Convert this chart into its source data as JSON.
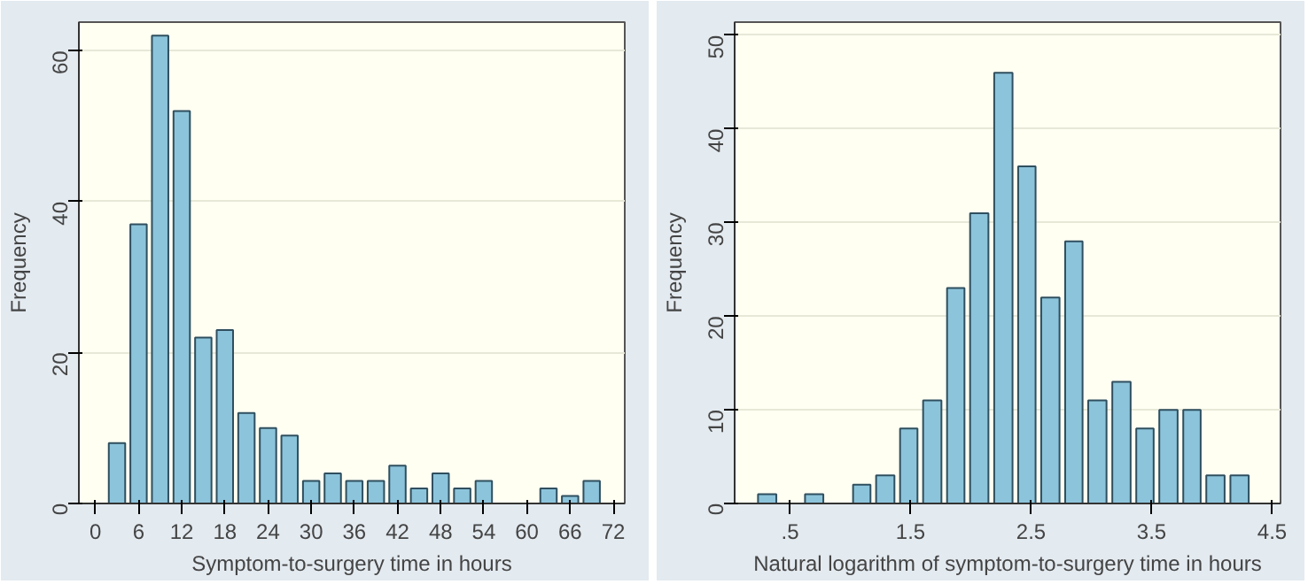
{
  "chart_data": [
    {
      "type": "histogram",
      "xlabel": "Symptom-to-surgery time in hours",
      "ylabel": "Frequency",
      "color": "#8cc4db",
      "bins": [
        1.5,
        4.5,
        7.5,
        10.5,
        13.5,
        16.5,
        19.5,
        22.5,
        25.5,
        28.5,
        31.5,
        34.5,
        37.5,
        40.5,
        43.5,
        46.5,
        49.5,
        52.5,
        55.5,
        58.5,
        61.5,
        64.5,
        67.5,
        70.5
      ],
      "values": [
        8,
        37,
        62,
        52,
        22,
        23,
        12,
        10,
        9,
        3,
        4,
        3,
        3,
        5,
        2,
        4,
        2,
        3,
        0,
        0,
        2,
        1,
        3
      ],
      "xlim": [
        -2.3,
        73.6
      ],
      "xticks": [
        0,
        6,
        12,
        18,
        24,
        30,
        36,
        42,
        48,
        54,
        60,
        66,
        72
      ],
      "ylim": [
        0,
        63.8
      ],
      "yticks": [
        0,
        20,
        40,
        60
      ],
      "grid": "y"
    },
    {
      "type": "histogram",
      "xlabel": "Natural logarithm of symptom-to-surgery time in hours",
      "ylabel": "Frequency",
      "color": "#8cc4db",
      "bins": [
        0.21,
        0.41,
        0.6,
        0.8,
        1.0,
        1.19,
        1.39,
        1.58,
        1.78,
        1.97,
        2.17,
        2.37,
        2.56,
        2.76,
        2.95,
        3.15,
        3.35,
        3.54,
        3.74,
        3.93,
        4.13,
        4.33
      ],
      "values": [
        1,
        0,
        1,
        0,
        2,
        3,
        8,
        11,
        23,
        31,
        46,
        36,
        22,
        28,
        11,
        13,
        8,
        10,
        10,
        3,
        3
      ],
      "xlim": [
        0.04,
        4.57
      ],
      "xticks": [
        {
          "value": 0.5,
          "label": ".5"
        },
        1.5,
        2.5,
        3.5,
        4.5
      ],
      "ylim": [
        0,
        51.4
      ],
      "yticks": [
        0,
        10,
        20,
        30,
        40,
        50
      ],
      "grid": "y"
    }
  ]
}
